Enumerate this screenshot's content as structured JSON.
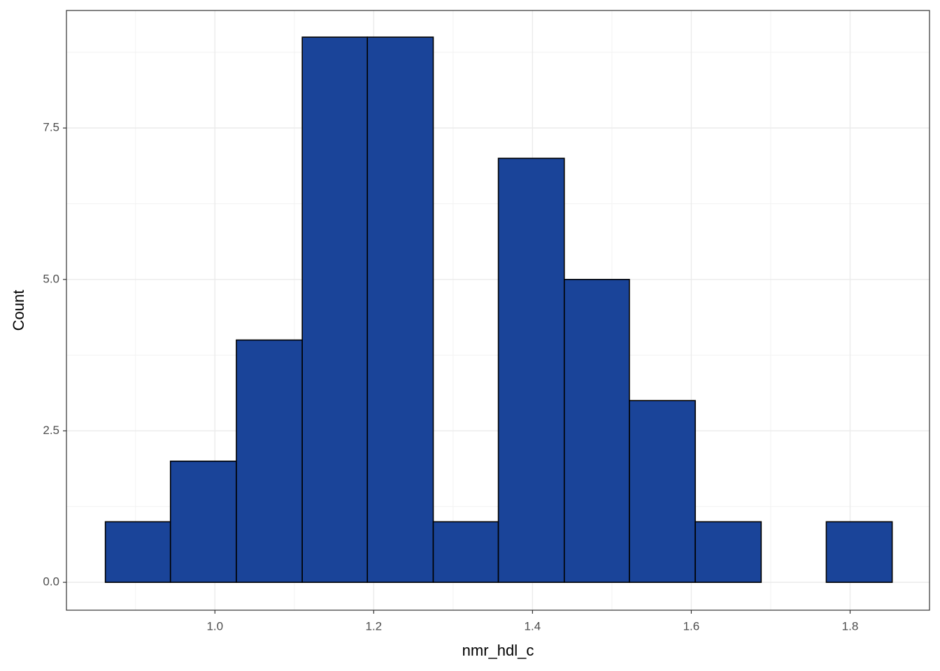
{
  "chart_data": {
    "type": "histogram",
    "x_label": "nmr_hdl_c",
    "y_label": "Count",
    "bins": [
      0.862,
      0.944,
      1.027,
      1.11,
      1.192,
      1.275,
      1.357,
      1.44,
      1.522,
      1.605,
      1.688,
      1.77,
      1.853
    ],
    "counts": [
      1,
      2,
      4,
      9,
      9,
      1,
      7,
      5,
      3,
      1,
      0,
      1
    ],
    "color": "#1a4499",
    "xlim": [
      0.813,
      1.9
    ],
    "ylim": [
      -0.46,
      9.44
    ],
    "xticks": [
      {
        "value": 1.0,
        "label": "1.0"
      },
      1.2,
      1.4,
      1.6,
      1.8
    ],
    "yticks": [
      {
        "value": 0,
        "label": "0.0"
      },
      2.5,
      {
        "value": 5,
        "label": "5.0"
      },
      7.5
    ],
    "grid": true
  }
}
